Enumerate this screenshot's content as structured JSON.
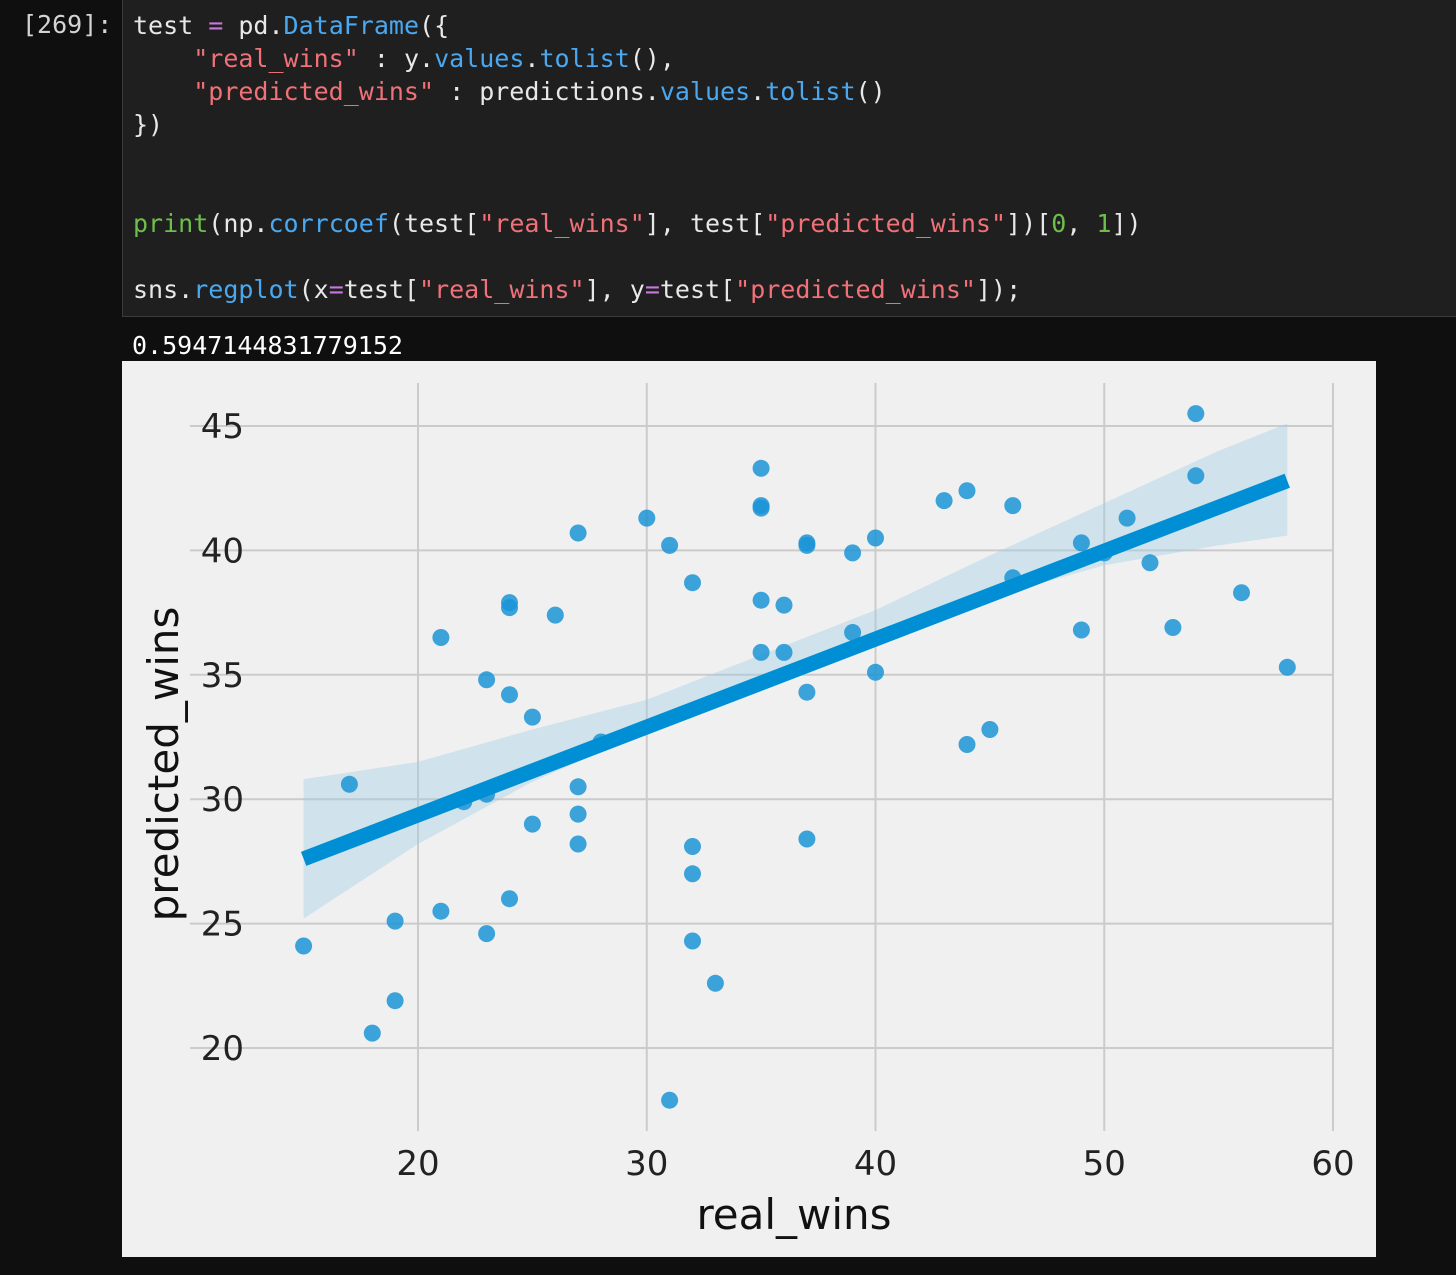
{
  "cell": {
    "prompt": "[269]:",
    "lines": [
      [
        [
          "test ",
          "plain"
        ],
        [
          "=",
          "op"
        ],
        [
          " pd.",
          "plain"
        ],
        [
          "DataFrame",
          "attr"
        ],
        [
          "({",
          "plain"
        ]
      ],
      [
        [
          "    ",
          "plain"
        ],
        [
          "\"real_wins\"",
          "str"
        ],
        [
          " : y.",
          "plain"
        ],
        [
          "values",
          "attr"
        ],
        [
          ".",
          "plain"
        ],
        [
          "tolist",
          "attr"
        ],
        [
          "(),",
          "plain"
        ]
      ],
      [
        [
          "    ",
          "plain"
        ],
        [
          "\"predicted_wins\"",
          "str"
        ],
        [
          " : predictions.",
          "plain"
        ],
        [
          "values",
          "attr"
        ],
        [
          ".",
          "plain"
        ],
        [
          "tolist",
          "attr"
        ],
        [
          "()",
          "plain"
        ]
      ],
      [
        [
          "})",
          "plain"
        ]
      ],
      [],
      [],
      [
        [
          "print",
          "fn"
        ],
        [
          "(np.",
          "plain"
        ],
        [
          "corrcoef",
          "attr"
        ],
        [
          "(test[",
          "plain"
        ],
        [
          "\"real_wins\"",
          "str"
        ],
        [
          "], test[",
          "plain"
        ],
        [
          "\"predicted_wins\"",
          "str"
        ],
        [
          "])[",
          "plain"
        ],
        [
          "0",
          "num"
        ],
        [
          ", ",
          "plain"
        ],
        [
          "1",
          "num"
        ],
        [
          "])",
          "plain"
        ]
      ],
      [],
      [
        [
          "sns.",
          "plain"
        ],
        [
          "regplot",
          "attr"
        ],
        [
          "(x",
          "plain"
        ],
        [
          "=",
          "op"
        ],
        [
          "test[",
          "plain"
        ],
        [
          "\"real_wins\"",
          "str"
        ],
        [
          "], y",
          "plain"
        ],
        [
          "=",
          "op"
        ],
        [
          "test[",
          "plain"
        ],
        [
          "\"predicted_wins\"",
          "str"
        ],
        [
          "]);",
          "plain"
        ]
      ]
    ]
  },
  "output": {
    "text": "0.5947144831779152"
  },
  "colors": {
    "plain": "#e8e8e8",
    "op": "#c678dd",
    "str": "#f07178",
    "attr": "#4aa8f0",
    "fn": "#6cc04a",
    "num": "#6cc04a",
    "point": "#1b94d6",
    "line": "#008fd5",
    "band": "#9ccbe6",
    "grid": "#cbcbcb",
    "plot_bg": "#f0f0f0"
  },
  "chart_data": {
    "type": "scatter",
    "xlabel": "real_wins",
    "ylabel": "predicted_wins",
    "xlim": [
      12,
      61
    ],
    "ylim": [
      17,
      46.5
    ],
    "xticks": [
      20,
      30,
      40,
      50,
      60
    ],
    "yticks": [
      20,
      25,
      30,
      35,
      40,
      45
    ],
    "grid": true,
    "points": [
      [
        15,
        24.1
      ],
      [
        17,
        30.6
      ],
      [
        18,
        20.6
      ],
      [
        19,
        25.1
      ],
      [
        19,
        21.9
      ],
      [
        21,
        36.5
      ],
      [
        21,
        25.5
      ],
      [
        22,
        29.9
      ],
      [
        23,
        34.8
      ],
      [
        23,
        30.2
      ],
      [
        23,
        24.6
      ],
      [
        24,
        37.9
      ],
      [
        24,
        37.7
      ],
      [
        24,
        34.2
      ],
      [
        24,
        26.0
      ],
      [
        25,
        33.3
      ],
      [
        25,
        29.0
      ],
      [
        26,
        37.4
      ],
      [
        27,
        40.7
      ],
      [
        27,
        30.5
      ],
      [
        27,
        29.4
      ],
      [
        27,
        28.2
      ],
      [
        28,
        32.3
      ],
      [
        30,
        41.3
      ],
      [
        31,
        40.2
      ],
      [
        31,
        17.9
      ],
      [
        32,
        38.7
      ],
      [
        32,
        28.1
      ],
      [
        32,
        27.0
      ],
      [
        32,
        24.3
      ],
      [
        33,
        22.6
      ],
      [
        35,
        43.3
      ],
      [
        35,
        41.8
      ],
      [
        35,
        41.7
      ],
      [
        35,
        38.0
      ],
      [
        35,
        35.9
      ],
      [
        36,
        37.8
      ],
      [
        36,
        35.9
      ],
      [
        37,
        40.3
      ],
      [
        37,
        40.2
      ],
      [
        37,
        34.3
      ],
      [
        37,
        28.4
      ],
      [
        39,
        39.9
      ],
      [
        39,
        36.7
      ],
      [
        40,
        40.5
      ],
      [
        40,
        35.1
      ],
      [
        43,
        42.0
      ],
      [
        44,
        42.4
      ],
      [
        44,
        32.2
      ],
      [
        45,
        32.8
      ],
      [
        46,
        41.8
      ],
      [
        46,
        38.9
      ],
      [
        49,
        40.3
      ],
      [
        49,
        36.8
      ],
      [
        50,
        39.9
      ],
      [
        51,
        41.3
      ],
      [
        52,
        39.5
      ],
      [
        53,
        36.9
      ],
      [
        54,
        45.5
      ],
      [
        54,
        43.0
      ],
      [
        56,
        38.3
      ],
      [
        58,
        35.3
      ]
    ],
    "regression": {
      "x": [
        15,
        58
      ],
      "y": [
        27.6,
        42.8
      ]
    },
    "ci_band": {
      "x": [
        15,
        20,
        25,
        30,
        35,
        40,
        45,
        50,
        55,
        58
      ],
      "lower": [
        25.2,
        28.2,
        30.7,
        32.7,
        34.6,
        36.5,
        38.1,
        39.4,
        40.2,
        40.6
      ],
      "upper": [
        30.8,
        31.5,
        32.8,
        34.0,
        35.8,
        37.6,
        39.8,
        41.9,
        44.0,
        45.1
      ]
    }
  }
}
